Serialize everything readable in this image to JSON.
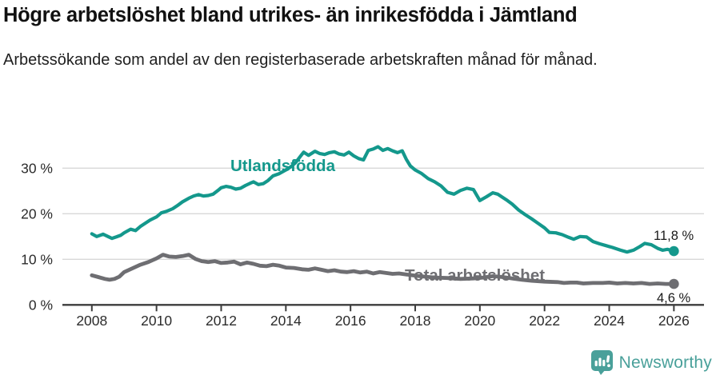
{
  "header": {
    "title": "Högre arbetslöshet bland utrikes- än inrikesfödda i Jämtland",
    "subtitle": "Arbetssökande som andel av den registerbaserade arbetskraften månad för månad."
  },
  "footer": {
    "brand": "Newsworthy",
    "logo_icon": "newsworthy-speech-bubble-bar-chart-icon"
  },
  "colors": {
    "series_foreign_born": "#14988c",
    "series_total": "#6e6e72",
    "grid": "#d8d8d8",
    "axis": "#3c3c3c",
    "tick_text": "#2b2b2b",
    "annotation": "#1a1a1a",
    "brand_teal": "#49a09a",
    "background": "#ffffff"
  },
  "chart_data": {
    "type": "line",
    "title": "Högre arbetslöshet bland utrikes- än inrikesfödda i Jämtland",
    "subtitle": "Arbetssökande som andel av den registerbaserade arbetskraften månad för månad.",
    "unit": "%",
    "legend": "inline-labels",
    "x_axis": {
      "ticks": [
        2008,
        2010,
        2012,
        2014,
        2016,
        2018,
        2020,
        2022,
        2024,
        2026
      ],
      "range": [
        2007.1,
        2026.9
      ]
    },
    "y_axis": {
      "ticks": [
        0,
        10,
        20,
        30
      ],
      "tick_labels": [
        "0 %",
        "10 %",
        "20 %",
        "30 %"
      ],
      "range": [
        0,
        36
      ],
      "grid": true
    },
    "series": [
      {
        "name": "Utlandsfödda",
        "color": "#14988c",
        "end_label": "11,8 %",
        "end_value": 11.8,
        "points": [
          [
            2008.0,
            15.6
          ],
          [
            2008.15,
            15.0
          ],
          [
            2008.35,
            15.5
          ],
          [
            2008.5,
            15.0
          ],
          [
            2008.62,
            14.6
          ],
          [
            2008.75,
            14.9
          ],
          [
            2008.9,
            15.3
          ],
          [
            2009.0,
            15.8
          ],
          [
            2009.2,
            16.6
          ],
          [
            2009.35,
            16.3
          ],
          [
            2009.5,
            17.2
          ],
          [
            2009.65,
            17.9
          ],
          [
            2009.8,
            18.6
          ],
          [
            2010.0,
            19.3
          ],
          [
            2010.15,
            20.2
          ],
          [
            2010.3,
            20.5
          ],
          [
            2010.5,
            21.1
          ],
          [
            2010.65,
            21.8
          ],
          [
            2010.8,
            22.6
          ],
          [
            2011.0,
            23.4
          ],
          [
            2011.15,
            23.9
          ],
          [
            2011.3,
            24.2
          ],
          [
            2011.45,
            23.9
          ],
          [
            2011.6,
            24.0
          ],
          [
            2011.75,
            24.3
          ],
          [
            2011.9,
            25.1
          ],
          [
            2012.0,
            25.7
          ],
          [
            2012.15,
            26.0
          ],
          [
            2012.3,
            25.8
          ],
          [
            2012.45,
            25.4
          ],
          [
            2012.6,
            25.6
          ],
          [
            2012.75,
            26.2
          ],
          [
            2012.9,
            26.7
          ],
          [
            2013.0,
            27.0
          ],
          [
            2013.15,
            26.4
          ],
          [
            2013.3,
            26.6
          ],
          [
            2013.45,
            27.3
          ],
          [
            2013.6,
            28.3
          ],
          [
            2013.8,
            28.8
          ],
          [
            2014.0,
            29.6
          ],
          [
            2014.15,
            30.3
          ],
          [
            2014.3,
            31.2
          ],
          [
            2014.45,
            32.6
          ],
          [
            2014.55,
            33.5
          ],
          [
            2014.7,
            32.8
          ],
          [
            2014.9,
            33.7
          ],
          [
            2015.05,
            33.2
          ],
          [
            2015.2,
            33.0
          ],
          [
            2015.35,
            33.4
          ],
          [
            2015.5,
            33.6
          ],
          [
            2015.65,
            33.1
          ],
          [
            2015.8,
            32.9
          ],
          [
            2015.95,
            33.5
          ],
          [
            2016.1,
            32.7
          ],
          [
            2016.25,
            32.1
          ],
          [
            2016.4,
            31.8
          ],
          [
            2016.55,
            33.9
          ],
          [
            2016.7,
            34.2
          ],
          [
            2016.85,
            34.7
          ],
          [
            2017.0,
            33.9
          ],
          [
            2017.15,
            34.3
          ],
          [
            2017.3,
            33.8
          ],
          [
            2017.45,
            33.4
          ],
          [
            2017.6,
            33.8
          ],
          [
            2017.72,
            32.0
          ],
          [
            2017.85,
            30.5
          ],
          [
            2018.0,
            29.6
          ],
          [
            2018.2,
            28.8
          ],
          [
            2018.4,
            27.7
          ],
          [
            2018.6,
            27.0
          ],
          [
            2018.8,
            26.1
          ],
          [
            2019.0,
            24.7
          ],
          [
            2019.2,
            24.3
          ],
          [
            2019.4,
            25.1
          ],
          [
            2019.6,
            25.6
          ],
          [
            2019.8,
            25.3
          ],
          [
            2020.0,
            22.9
          ],
          [
            2020.2,
            23.7
          ],
          [
            2020.4,
            24.6
          ],
          [
            2020.55,
            24.3
          ],
          [
            2020.7,
            23.6
          ],
          [
            2020.85,
            22.9
          ],
          [
            2021.0,
            22.1
          ],
          [
            2021.2,
            20.8
          ],
          [
            2021.4,
            19.8
          ],
          [
            2021.6,
            18.9
          ],
          [
            2021.8,
            17.9
          ],
          [
            2022.0,
            16.9
          ],
          [
            2022.15,
            15.9
          ],
          [
            2022.35,
            15.8
          ],
          [
            2022.55,
            15.4
          ],
          [
            2022.75,
            14.8
          ],
          [
            2022.9,
            14.4
          ],
          [
            2023.1,
            15.0
          ],
          [
            2023.3,
            14.9
          ],
          [
            2023.5,
            13.9
          ],
          [
            2023.7,
            13.4
          ],
          [
            2023.9,
            13.0
          ],
          [
            2024.1,
            12.6
          ],
          [
            2024.35,
            12.0
          ],
          [
            2024.55,
            11.6
          ],
          [
            2024.75,
            12.0
          ],
          [
            2024.95,
            12.8
          ],
          [
            2025.1,
            13.5
          ],
          [
            2025.3,
            13.2
          ],
          [
            2025.5,
            12.4
          ],
          [
            2025.65,
            12.0
          ],
          [
            2025.8,
            12.2
          ],
          [
            2026.0,
            11.8
          ]
        ]
      },
      {
        "name": "Total arbetslöshet",
        "color": "#6e6e72",
        "end_label": "4,6 %",
        "end_value": 4.6,
        "points": [
          [
            2008.0,
            6.5
          ],
          [
            2008.2,
            6.1
          ],
          [
            2008.4,
            5.7
          ],
          [
            2008.55,
            5.5
          ],
          [
            2008.7,
            5.7
          ],
          [
            2008.85,
            6.2
          ],
          [
            2009.0,
            7.2
          ],
          [
            2009.25,
            8.0
          ],
          [
            2009.5,
            8.8
          ],
          [
            2009.75,
            9.4
          ],
          [
            2010.0,
            10.2
          ],
          [
            2010.2,
            11.0
          ],
          [
            2010.4,
            10.6
          ],
          [
            2010.6,
            10.5
          ],
          [
            2010.8,
            10.7
          ],
          [
            2011.0,
            11.0
          ],
          [
            2011.2,
            10.1
          ],
          [
            2011.4,
            9.6
          ],
          [
            2011.6,
            9.4
          ],
          [
            2011.8,
            9.6
          ],
          [
            2012.0,
            9.2
          ],
          [
            2012.2,
            9.3
          ],
          [
            2012.4,
            9.5
          ],
          [
            2012.6,
            8.9
          ],
          [
            2012.8,
            9.3
          ],
          [
            2013.0,
            9.0
          ],
          [
            2013.2,
            8.6
          ],
          [
            2013.4,
            8.5
          ],
          [
            2013.6,
            8.8
          ],
          [
            2013.8,
            8.6
          ],
          [
            2014.0,
            8.2
          ],
          [
            2014.25,
            8.1
          ],
          [
            2014.5,
            7.8
          ],
          [
            2014.7,
            7.7
          ],
          [
            2014.9,
            8.0
          ],
          [
            2015.1,
            7.7
          ],
          [
            2015.3,
            7.4
          ],
          [
            2015.5,
            7.6
          ],
          [
            2015.7,
            7.3
          ],
          [
            2015.9,
            7.2
          ],
          [
            2016.1,
            7.4
          ],
          [
            2016.3,
            7.1
          ],
          [
            2016.5,
            7.3
          ],
          [
            2016.7,
            6.9
          ],
          [
            2016.9,
            7.2
          ],
          [
            2017.1,
            7.0
          ],
          [
            2017.3,
            6.8
          ],
          [
            2017.5,
            6.9
          ],
          [
            2017.7,
            6.7
          ],
          [
            2018.0,
            6.4
          ],
          [
            2018.3,
            6.2
          ],
          [
            2018.6,
            6.0
          ],
          [
            2019.0,
            5.9
          ],
          [
            2019.4,
            5.7
          ],
          [
            2019.8,
            5.8
          ],
          [
            2020.1,
            6.0
          ],
          [
            2020.4,
            6.3
          ],
          [
            2020.7,
            6.1
          ],
          [
            2021.0,
            5.8
          ],
          [
            2021.3,
            5.5
          ],
          [
            2021.6,
            5.3
          ],
          [
            2022.0,
            5.1
          ],
          [
            2022.4,
            5.0
          ],
          [
            2022.6,
            4.8
          ],
          [
            2022.8,
            4.9
          ],
          [
            2023.0,
            4.9
          ],
          [
            2023.2,
            4.7
          ],
          [
            2023.5,
            4.8
          ],
          [
            2023.8,
            4.8
          ],
          [
            2024.0,
            4.9
          ],
          [
            2024.25,
            4.7
          ],
          [
            2024.5,
            4.8
          ],
          [
            2024.75,
            4.7
          ],
          [
            2025.0,
            4.8
          ],
          [
            2025.25,
            4.6
          ],
          [
            2025.5,
            4.7
          ],
          [
            2025.75,
            4.6
          ],
          [
            2026.0,
            4.6
          ]
        ]
      }
    ]
  }
}
